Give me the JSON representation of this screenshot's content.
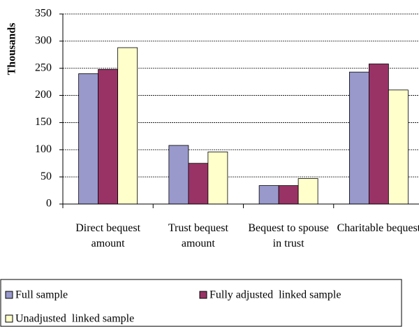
{
  "chart_data": {
    "type": "bar",
    "y_label": "Thousands",
    "categories": [
      "Direct bequest amount",
      "Trust bequest amount",
      "Bequest to spouse in trust",
      "Charitable bequest"
    ],
    "series": [
      {
        "name": "Full sample",
        "color": "#9999cc",
        "values": [
          240,
          108,
          34,
          243
        ]
      },
      {
        "name": "Fully adjusted  linked sample",
        "color": "#993366",
        "values": [
          248,
          75,
          34,
          258
        ]
      },
      {
        "name": "Unadjusted  linked sample",
        "color": "#ffffcc",
        "values": [
          288,
          96,
          47,
          210
        ]
      }
    ],
    "ylim": [
      0,
      350
    ],
    "yticks": [
      0,
      50,
      100,
      150,
      200,
      250,
      300,
      350
    ],
    "grid": true,
    "legend": "bottom"
  }
}
